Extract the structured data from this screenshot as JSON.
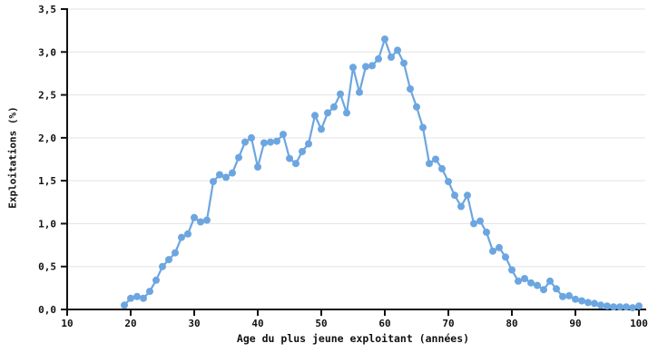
{
  "figure": {
    "background": "#ffffff",
    "line_color": "#6CA6E0",
    "marker_color": "#6CA6E0",
    "grid_color": "#e3e3e3",
    "axis_color": "#111111",
    "text_color": "#111111"
  },
  "chart_data": {
    "type": "line",
    "title": "",
    "xlabel": "Age du plus jeune exploitant (années)",
    "ylabel": "Exploitations (%)",
    "xlim": [
      10,
      100
    ],
    "ylim": [
      0,
      3.5
    ],
    "x_ticks": [
      10,
      20,
      30,
      40,
      50,
      60,
      70,
      80,
      90,
      100
    ],
    "x_tick_labels": [
      "10",
      "20",
      "30",
      "40",
      "50",
      "60",
      "70",
      "80",
      "90",
      "100"
    ],
    "y_ticks": [
      0,
      0.5,
      1.0,
      1.5,
      2.0,
      2.5,
      3.0,
      3.5
    ],
    "y_tick_labels": [
      "0,0",
      "0,5",
      "1,0",
      "1,5",
      "2,0",
      "2,5",
      "3,0",
      "3,5"
    ],
    "grid": "horizontal-only",
    "legend": "none",
    "marker": "circle",
    "x": [
      19,
      20,
      21,
      22,
      23,
      24,
      25,
      26,
      27,
      28,
      29,
      30,
      31,
      32,
      33,
      34,
      35,
      36,
      37,
      38,
      39,
      40,
      41,
      42,
      43,
      44,
      45,
      46,
      47,
      48,
      49,
      50,
      51,
      52,
      53,
      54,
      55,
      56,
      57,
      58,
      59,
      60,
      61,
      62,
      63,
      64,
      65,
      66,
      67,
      68,
      69,
      70,
      71,
      72,
      73,
      74,
      75,
      76,
      77,
      78,
      79,
      80,
      81,
      82,
      83,
      84,
      85,
      86,
      87,
      88,
      89,
      90,
      91,
      92,
      93,
      94,
      95,
      96,
      97,
      98,
      99,
      100
    ],
    "y": [
      0.05,
      0.13,
      0.15,
      0.13,
      0.21,
      0.34,
      0.5,
      0.58,
      0.66,
      0.84,
      0.88,
      1.07,
      1.02,
      1.04,
      1.49,
      1.57,
      1.54,
      1.59,
      1.77,
      1.95,
      2.0,
      1.66,
      1.94,
      1.95,
      1.96,
      2.04,
      1.76,
      1.7,
      1.84,
      1.93,
      2.26,
      2.1,
      2.29,
      2.36,
      2.51,
      2.29,
      2.82,
      2.53,
      2.83,
      2.84,
      2.92,
      3.15,
      2.94,
      3.02,
      2.87,
      2.57,
      2.36,
      2.12,
      1.7,
      1.75,
      1.64,
      1.49,
      1.33,
      1.2,
      1.33,
      1.0,
      1.03,
      0.9,
      0.68,
      0.72,
      0.61,
      0.46,
      0.33,
      0.36,
      0.31,
      0.28,
      0.23,
      0.33,
      0.24,
      0.15,
      0.16,
      0.12,
      0.1,
      0.08,
      0.07,
      0.05,
      0.04,
      0.03,
      0.03,
      0.03,
      0.02,
      0.04
    ]
  }
}
